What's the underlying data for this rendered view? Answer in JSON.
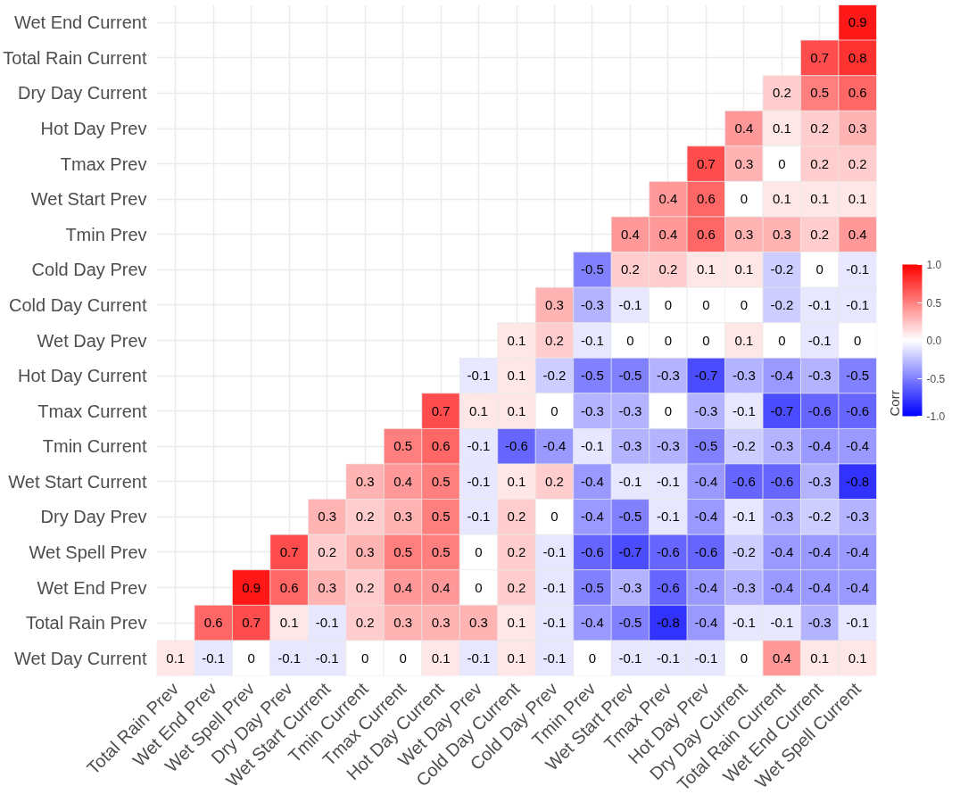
{
  "chart_data": {
    "type": "heatmap",
    "legend_title": "Corr",
    "grid": true,
    "data_labels": true,
    "categories": [
      "Total Rain Prev",
      "Wet End Prev",
      "Wet Spell Prev",
      "Dry Day Prev",
      "Wet Start Current",
      "Tmin Current",
      "Tmax Current",
      "Hot Day Current",
      "Wet Day Prev",
      "Cold Day Current",
      "Cold Day Prev",
      "Tmin Prev",
      "Wet Start Prev",
      "Tmax Prev",
      "Hot Day Prev",
      "Dry Day Current",
      "Total Rain Current",
      "Wet End Current",
      "Wet Spell Current"
    ],
    "y_categories": [
      "Wet End Current",
      "Total Rain Current",
      "Dry Day Current",
      "Hot Day Prev",
      "Tmax Prev",
      "Wet Start Prev",
      "Tmin Prev",
      "Cold Day Prev",
      "Cold Day Current",
      "Wet Day Prev",
      "Hot Day Current",
      "Tmax Current",
      "Tmin Current",
      "Wet Start Current",
      "Dry Day Prev",
      "Wet Spell Prev",
      "Wet End Prev",
      "Total Rain Prev",
      "Wet Day Current"
    ],
    "cells": [
      [
        null,
        null,
        null,
        null,
        null,
        null,
        null,
        null,
        null,
        null,
        null,
        null,
        null,
        null,
        null,
        null,
        null,
        null,
        0.9
      ],
      [
        null,
        null,
        null,
        null,
        null,
        null,
        null,
        null,
        null,
        null,
        null,
        null,
        null,
        null,
        null,
        null,
        null,
        0.7,
        0.8
      ],
      [
        null,
        null,
        null,
        null,
        null,
        null,
        null,
        null,
        null,
        null,
        null,
        null,
        null,
        null,
        null,
        null,
        0.2,
        0.5,
        0.6
      ],
      [
        null,
        null,
        null,
        null,
        null,
        null,
        null,
        null,
        null,
        null,
        null,
        null,
        null,
        null,
        null,
        0.4,
        0.1,
        0.2,
        0.3
      ],
      [
        null,
        null,
        null,
        null,
        null,
        null,
        null,
        null,
        null,
        null,
        null,
        null,
        null,
        null,
        0.7,
        0.3,
        0,
        0.2,
        0.2
      ],
      [
        null,
        null,
        null,
        null,
        null,
        null,
        null,
        null,
        null,
        null,
        null,
        null,
        null,
        0.4,
        0.6,
        0,
        0.1,
        0.1,
        0.1
      ],
      [
        null,
        null,
        null,
        null,
        null,
        null,
        null,
        null,
        null,
        null,
        null,
        null,
        0.4,
        0.4,
        0.6,
        0.3,
        0.3,
        0.2,
        0.4
      ],
      [
        null,
        null,
        null,
        null,
        null,
        null,
        null,
        null,
        null,
        null,
        null,
        -0.5,
        0.2,
        0.2,
        0.1,
        0.1,
        -0.2,
        0,
        -0.1
      ],
      [
        null,
        null,
        null,
        null,
        null,
        null,
        null,
        null,
        null,
        null,
        0.3,
        -0.3,
        -0.1,
        0,
        0,
        0,
        -0.2,
        -0.1,
        -0.1
      ],
      [
        null,
        null,
        null,
        null,
        null,
        null,
        null,
        null,
        null,
        0.1,
        0.2,
        -0.1,
        0,
        0,
        0,
        0.1,
        0,
        -0.1,
        0
      ],
      [
        null,
        null,
        null,
        null,
        null,
        null,
        null,
        null,
        -0.1,
        0.1,
        -0.2,
        -0.5,
        -0.5,
        -0.3,
        -0.7,
        -0.3,
        -0.4,
        -0.3,
        -0.5
      ],
      [
        null,
        null,
        null,
        null,
        null,
        null,
        null,
        0.7,
        0.1,
        0.1,
        0,
        -0.3,
        -0.3,
        0,
        -0.3,
        -0.1,
        -0.7,
        -0.6,
        -0.6
      ],
      [
        null,
        null,
        null,
        null,
        null,
        null,
        0.5,
        0.6,
        -0.1,
        -0.6,
        -0.4,
        -0.1,
        -0.3,
        -0.3,
        -0.5,
        -0.2,
        -0.3,
        -0.4,
        -0.4
      ],
      [
        null,
        null,
        null,
        null,
        null,
        0.3,
        0.4,
        0.5,
        -0.1,
        0.1,
        0.2,
        -0.4,
        -0.1,
        -0.1,
        -0.4,
        -0.6,
        -0.6,
        -0.3,
        -0.8
      ],
      [
        null,
        null,
        null,
        null,
        0.3,
        0.2,
        0.3,
        0.5,
        -0.1,
        0.2,
        0,
        -0.4,
        -0.5,
        -0.1,
        -0.4,
        -0.1,
        -0.3,
        -0.2,
        -0.3
      ],
      [
        null,
        null,
        null,
        0.7,
        0.2,
        0.3,
        0.5,
        0.5,
        0,
        0.2,
        -0.1,
        -0.6,
        -0.7,
        -0.6,
        -0.6,
        -0.2,
        -0.4,
        -0.4,
        -0.4
      ],
      [
        null,
        null,
        0.9,
        0.6,
        0.3,
        0.2,
        0.4,
        0.4,
        0,
        0.2,
        -0.1,
        -0.5,
        -0.3,
        -0.6,
        -0.4,
        -0.3,
        -0.4,
        -0.4,
        -0.4
      ],
      [
        null,
        0.6,
        0.7,
        0.1,
        -0.1,
        0.2,
        0.3,
        0.3,
        0.3,
        0.1,
        -0.1,
        -0.4,
        -0.5,
        -0.8,
        -0.4,
        -0.1,
        -0.1,
        -0.3,
        -0.1
      ],
      [
        0.1,
        -0.1,
        0,
        -0.1,
        -0.1,
        0,
        0,
        0.1,
        -0.1,
        0.1,
        -0.1,
        0,
        -0.1,
        -0.1,
        -0.1,
        0,
        0.4,
        0.1,
        0.1
      ]
    ],
    "clim": [
      -1,
      1
    ],
    "cticks": [
      {
        "value": -1,
        "label": "-1.0"
      },
      {
        "value": -0.5,
        "label": "-0.5"
      },
      {
        "value": 0,
        "label": "0.0"
      },
      {
        "value": 0.5,
        "label": "0.5"
      },
      {
        "value": 1,
        "label": "1.0"
      }
    ]
  }
}
